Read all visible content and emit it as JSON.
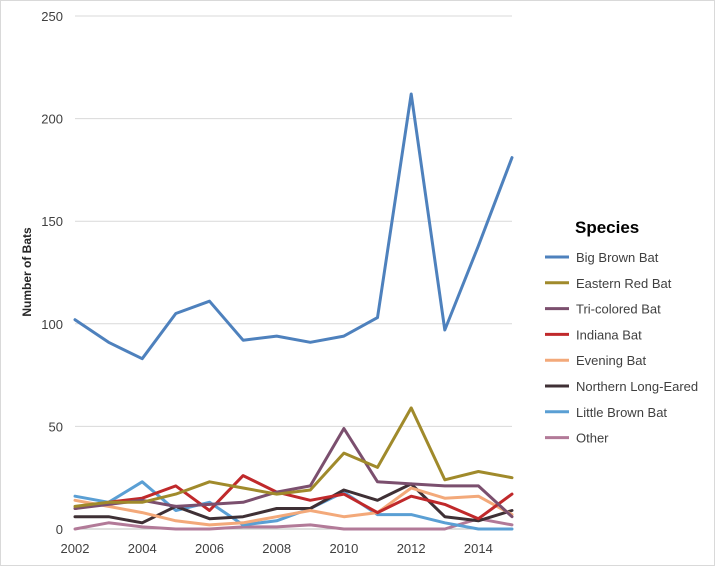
{
  "chart_data": {
    "type": "line",
    "title": "",
    "xlabel": "",
    "ylabel": "Number of Bats",
    "xlim": [
      2002,
      2015
    ],
    "ylim": [
      0,
      250
    ],
    "yticks": [
      0,
      50,
      100,
      150,
      200,
      250
    ],
    "xticks": [
      2002,
      2004,
      2006,
      2008,
      2010,
      2012,
      2014
    ],
    "grid": "horizontal",
    "legend_title": "Species",
    "legend_position": "right",
    "x": [
      2002,
      2003,
      2004,
      2005,
      2006,
      2007,
      2008,
      2009,
      2010,
      2011,
      2012,
      2013,
      2014,
      2015
    ],
    "series": [
      {
        "name": "Big Brown Bat",
        "color": "#4e81bd",
        "values": [
          102,
          91,
          83,
          105,
          111,
          92,
          94,
          91,
          94,
          103,
          212,
          97,
          138,
          181
        ]
      },
      {
        "name": "Eastern Red Bat",
        "color": "#a08a2b",
        "values": [
          11,
          13,
          13,
          17,
          23,
          20,
          17,
          19,
          37,
          30,
          59,
          24,
          28,
          25
        ]
      },
      {
        "name": "Tri-colored Bat",
        "color": "#7b4f6e",
        "values": [
          10,
          12,
          14,
          11,
          12,
          13,
          18,
          21,
          49,
          23,
          22,
          21,
          21,
          6
        ]
      },
      {
        "name": "Indiana Bat",
        "color": "#c0292b",
        "values": [
          10,
          13,
          15,
          21,
          9,
          26,
          18,
          14,
          17,
          8,
          16,
          12,
          5,
          17
        ]
      },
      {
        "name": "Evening Bat",
        "color": "#f3a97a",
        "values": [
          14,
          11,
          8,
          4,
          2,
          3,
          6,
          9,
          6,
          8,
          20,
          15,
          16,
          7
        ]
      },
      {
        "name": "Northern Long-Eared",
        "color": "#3f3035",
        "values": [
          6,
          6,
          3,
          11,
          5,
          6,
          10,
          10,
          19,
          14,
          22,
          6,
          4,
          9
        ]
      },
      {
        "name": "Little Brown Bat",
        "color": "#5a9fd4",
        "values": [
          16,
          13,
          23,
          9,
          13,
          2,
          4,
          10,
          18,
          7,
          7,
          3,
          0,
          0
        ]
      },
      {
        "name": "Other",
        "color": "#b27a98",
        "values": [
          0,
          3,
          1,
          0,
          0,
          1,
          1,
          2,
          0,
          0,
          0,
          0,
          5,
          2
        ]
      }
    ]
  }
}
